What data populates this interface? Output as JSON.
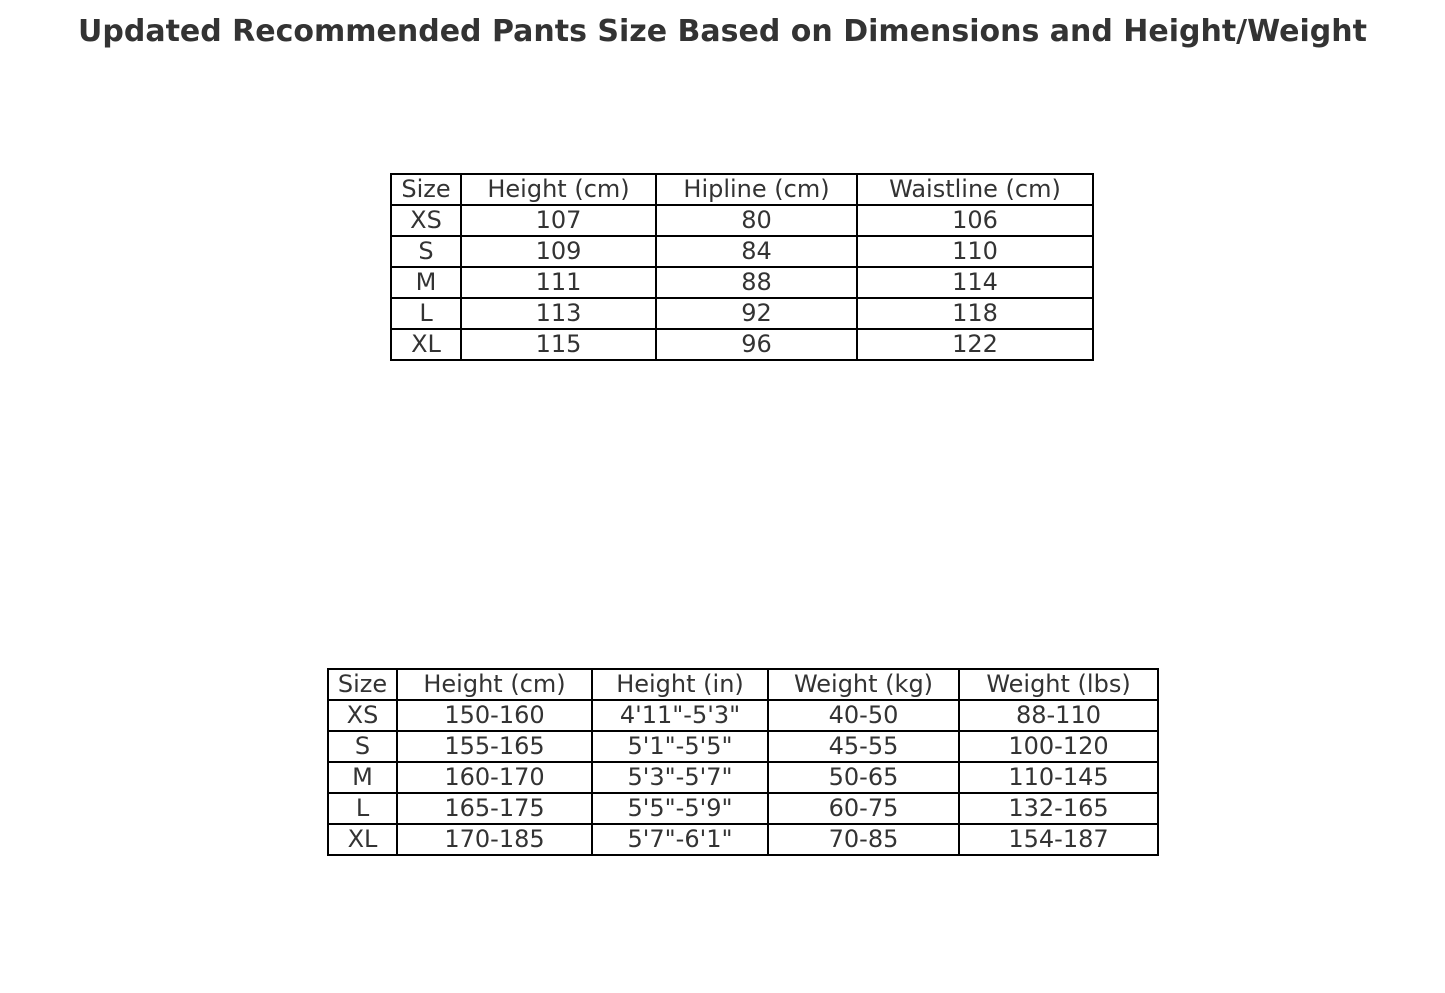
{
  "chart_data": [
    {
      "type": "table",
      "title": "Updated Recommended Pants Size Based on Dimensions and Height/Weight",
      "columns": [
        "Size",
        "Height (cm)",
        "Hipline (cm)",
        "Waistline (cm)"
      ],
      "rows": [
        [
          "XS",
          "107",
          "80",
          "106"
        ],
        [
          "S",
          "109",
          "84",
          "110"
        ],
        [
          "M",
          "111",
          "88",
          "114"
        ],
        [
          "L",
          "113",
          "92",
          "118"
        ],
        [
          "XL",
          "115",
          "96",
          "122"
        ]
      ]
    },
    {
      "type": "table",
      "columns": [
        "Size",
        "Height (cm)",
        "Height (in)",
        "Weight (kg)",
        "Weight (lbs)"
      ],
      "rows": [
        [
          "XS",
          "150-160",
          "4'11\"-5'3\"",
          "40-50",
          "88-110"
        ],
        [
          "S",
          "155-165",
          "5'1\"-5'5\"",
          "45-55",
          "100-120"
        ],
        [
          "M",
          "160-170",
          "5'3\"-5'7\"",
          "50-65",
          "110-145"
        ],
        [
          "L",
          "165-175",
          "5'5\"-5'9\"",
          "60-75",
          "132-165"
        ],
        [
          "XL",
          "170-185",
          "5'7\"-6'1\"",
          "70-85",
          "154-187"
        ]
      ]
    }
  ]
}
